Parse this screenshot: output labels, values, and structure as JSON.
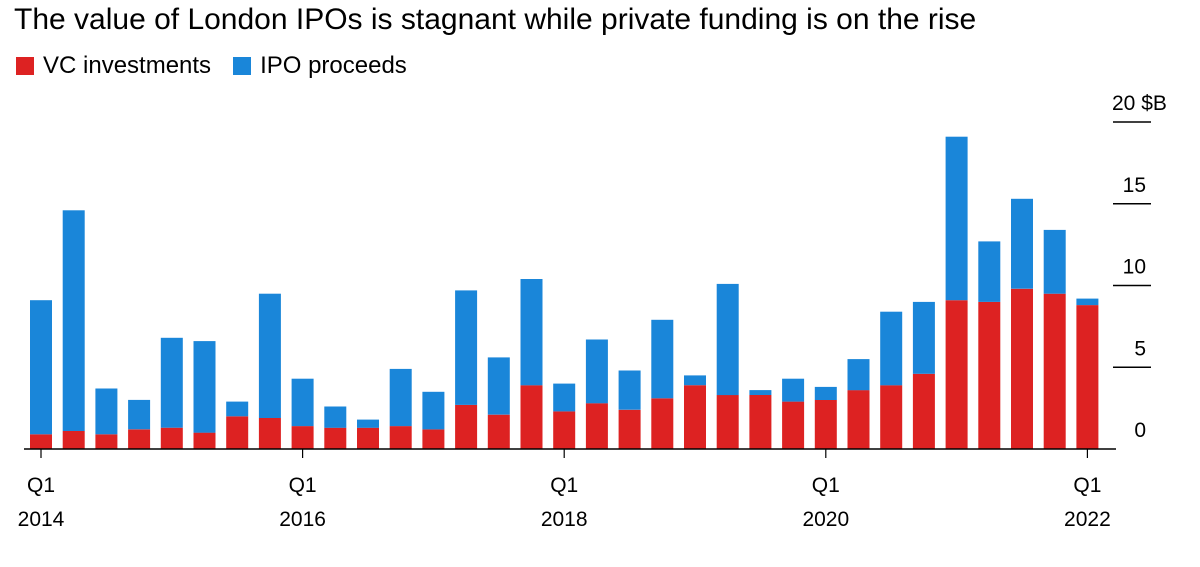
{
  "chart_data": {
    "type": "bar",
    "stacked": true,
    "title": "The value of London IPOs is stagnant while private funding is on the rise",
    "unit": "$B",
    "x": [
      "2014 Q1",
      "2014 Q2",
      "2014 Q3",
      "2014 Q4",
      "2015 Q1",
      "2015 Q2",
      "2015 Q3",
      "2015 Q4",
      "2016 Q1",
      "2016 Q2",
      "2016 Q3",
      "2016 Q4",
      "2017 Q1",
      "2017 Q2",
      "2017 Q3",
      "2017 Q4",
      "2018 Q1",
      "2018 Q2",
      "2018 Q3",
      "2018 Q4",
      "2019 Q1",
      "2019 Q2",
      "2019 Q3",
      "2019 Q4",
      "2020 Q1",
      "2020 Q2",
      "2020 Q3",
      "2020 Q4",
      "2021 Q1",
      "2021 Q2",
      "2021 Q3",
      "2021 Q4",
      "2022 Q1"
    ],
    "series": [
      {
        "name": "VC investments",
        "color": "#dd2222",
        "values": [
          0.9,
          1.1,
          0.9,
          1.2,
          1.3,
          1.0,
          2.0,
          1.9,
          1.4,
          1.3,
          1.3,
          1.4,
          1.2,
          2.7,
          2.1,
          3.9,
          2.3,
          2.8,
          2.4,
          3.1,
          3.9,
          3.3,
          3.3,
          2.9,
          3.0,
          3.6,
          3.9,
          4.6,
          9.1,
          9.0,
          9.8,
          9.5,
          8.8
        ]
      },
      {
        "name": "IPO proceeds",
        "color": "#1a86d9",
        "values": [
          8.2,
          13.5,
          2.8,
          1.8,
          5.5,
          5.6,
          0.9,
          7.6,
          2.9,
          1.3,
          0.5,
          3.5,
          2.3,
          7.0,
          3.5,
          6.5,
          1.7,
          3.9,
          2.4,
          4.8,
          0.6,
          6.8,
          0.3,
          1.4,
          0.8,
          1.9,
          4.5,
          4.4,
          10.0,
          3.7,
          5.5,
          3.9,
          0.4
        ]
      }
    ],
    "x_tick_labels": [
      {
        "index": 0,
        "line1": "Q1",
        "line2": "2014"
      },
      {
        "index": 8,
        "line1": "Q1",
        "line2": "2016"
      },
      {
        "index": 16,
        "line1": "Q1",
        "line2": "2018"
      },
      {
        "index": 24,
        "line1": "Q1",
        "line2": "2020"
      },
      {
        "index": 32,
        "line1": "Q1",
        "line2": "2022"
      }
    ],
    "y_ticks": [
      {
        "value": 0,
        "label": "0"
      },
      {
        "value": 5,
        "label": "5"
      },
      {
        "value": 10,
        "label": "10"
      },
      {
        "value": 15,
        "label": "15"
      },
      {
        "value": 20,
        "label": "20 $B"
      }
    ],
    "ylim": [
      0,
      20
    ],
    "legend_position": "top-left",
    "y_axis_position": "right",
    "grid": false
  }
}
